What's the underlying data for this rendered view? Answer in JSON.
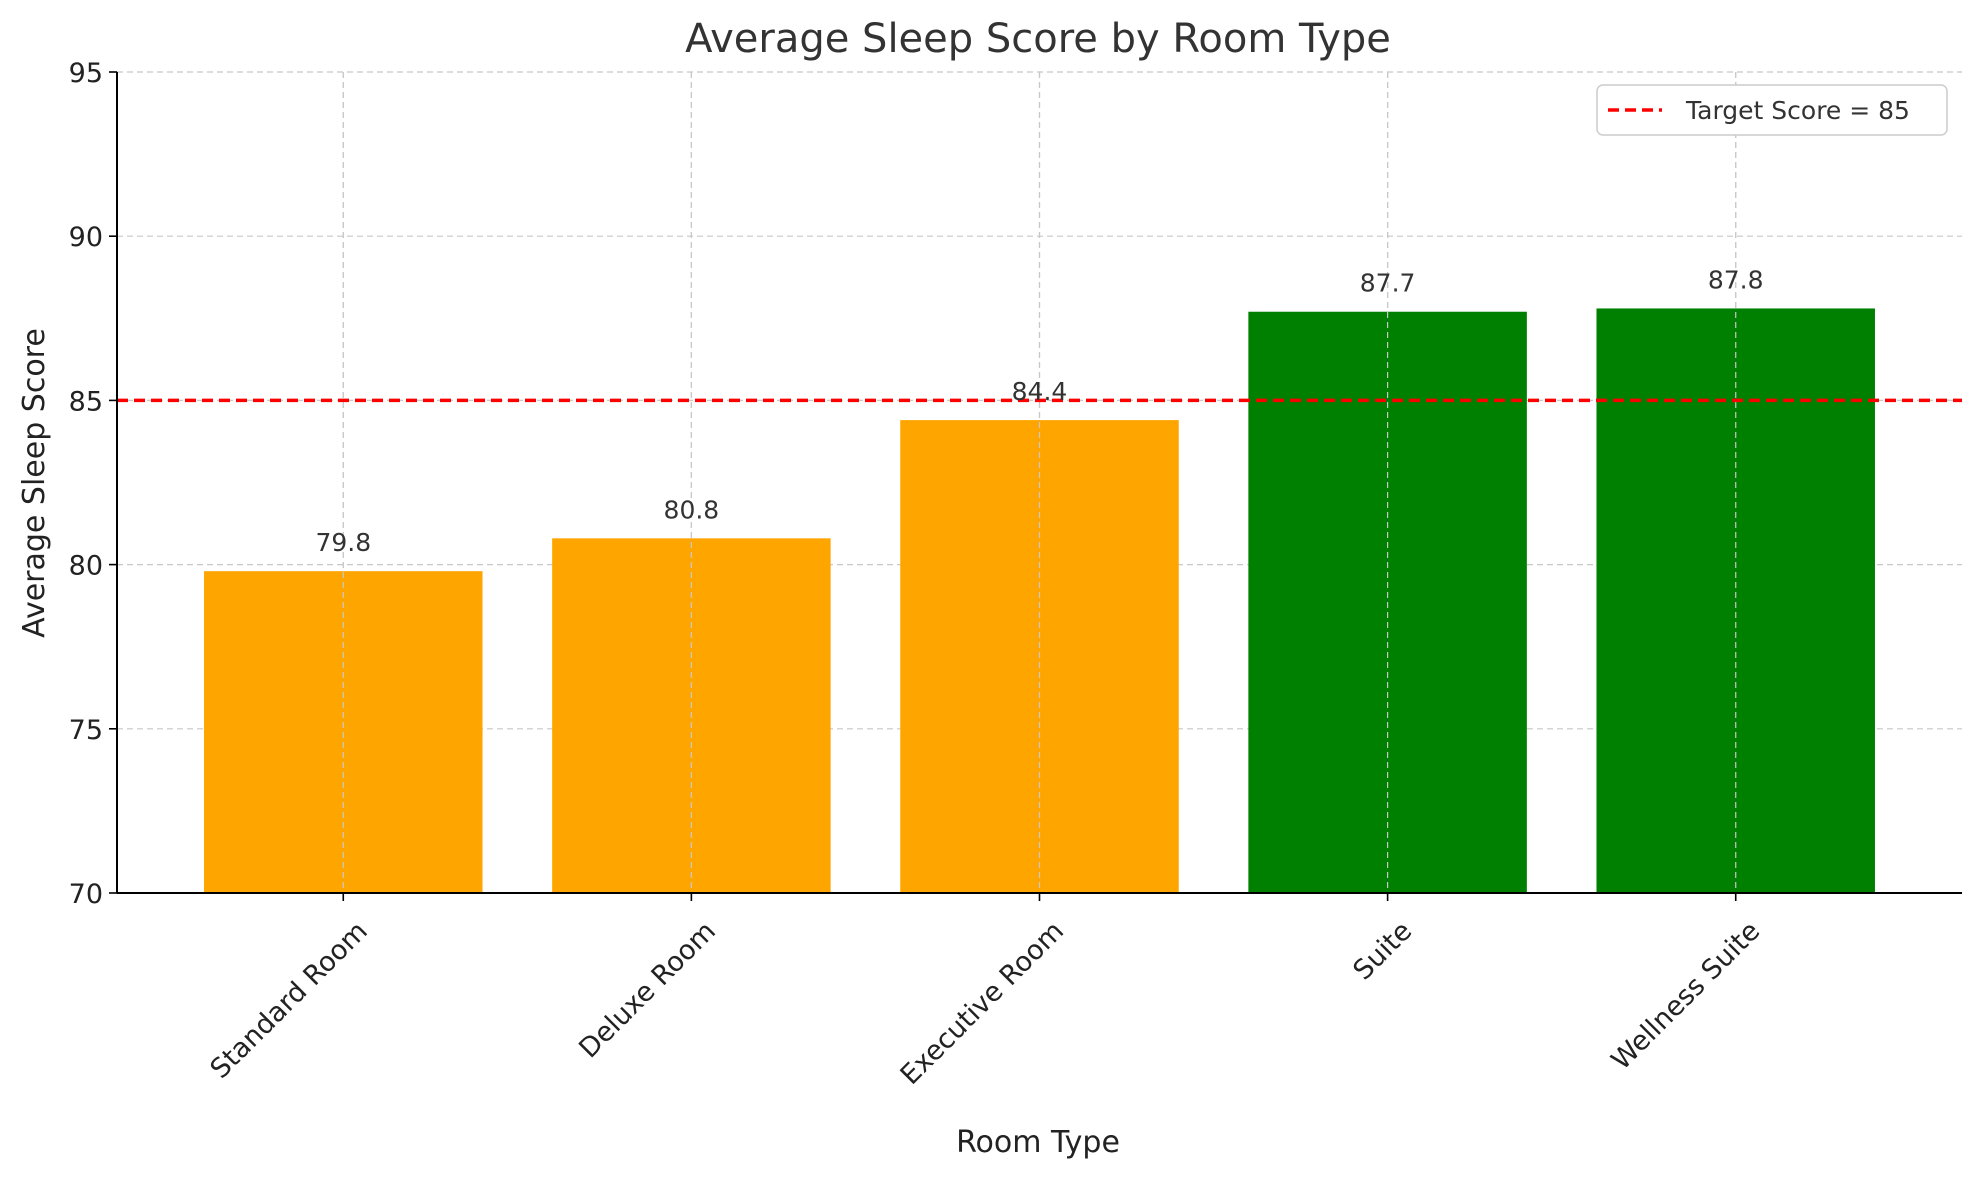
{
  "chart_data": {
    "type": "bar",
    "title": "Average Sleep Score by Room Type",
    "xlabel": "Room Type",
    "ylabel": "Average Sleep Score",
    "categories": [
      "Standard Room",
      "Deluxe Room",
      "Executive Room",
      "Suite",
      "Wellness Suite"
    ],
    "values": [
      79.8,
      80.8,
      84.4,
      87.7,
      87.8
    ],
    "value_labels": [
      "79.8",
      "80.8",
      "84.4",
      "87.7",
      "87.8"
    ],
    "bar_colors": [
      "#ffa500",
      "#ffa500",
      "#ffa500",
      "#008000",
      "#008000"
    ],
    "ylim": [
      70,
      95
    ],
    "yticks": [
      70,
      75,
      80,
      85,
      90,
      95
    ],
    "ytick_labels": [
      "70",
      "75",
      "80",
      "85",
      "90",
      "95"
    ],
    "grid": true,
    "reference_line": {
      "value": 85,
      "label": "Target Score = 85",
      "color": "#ff0000",
      "style": "dashed"
    },
    "legend": {
      "placement": "top-right",
      "entries": [
        "Target Score = 85"
      ]
    }
  }
}
